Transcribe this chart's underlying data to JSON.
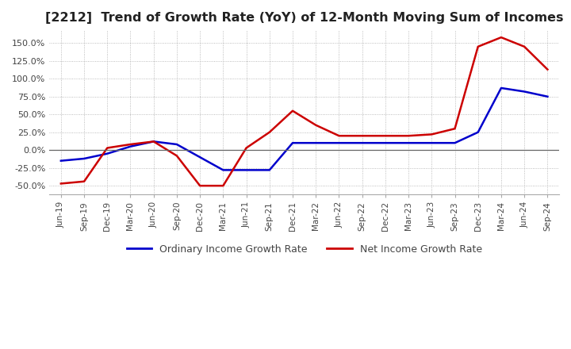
{
  "title": "[2212]  Trend of Growth Rate (YoY) of 12-Month Moving Sum of Incomes",
  "title_fontsize": 11.5,
  "ylim": [
    -62,
    168
  ],
  "yticks": [
    -50,
    -25,
    0,
    25,
    50,
    75,
    100,
    125,
    150
  ],
  "background_color": "#ffffff",
  "grid_color": "#aaaaaa",
  "legend_labels": [
    "Ordinary Income Growth Rate",
    "Net Income Growth Rate"
  ],
  "legend_colors": [
    "#0000cc",
    "#cc0000"
  ],
  "x_labels": [
    "Jun-19",
    "Sep-19",
    "Dec-19",
    "Mar-20",
    "Jun-20",
    "Sep-20",
    "Dec-20",
    "Mar-21",
    "Jun-21",
    "Sep-21",
    "Dec-21",
    "Mar-22",
    "Jun-22",
    "Sep-22",
    "Dec-22",
    "Mar-23",
    "Jun-23",
    "Sep-23",
    "Dec-23",
    "Mar-24",
    "Jun-24",
    "Sep-24"
  ],
  "ordinary_income_growth": [
    -15.0,
    -12.0,
    -5.0,
    5.0,
    12.0,
    8.0,
    -10.0,
    -28.0,
    -28.0,
    -28.0,
    10.0,
    10.0,
    10.0,
    10.0,
    10.0,
    10.0,
    10.0,
    10.0,
    25.0,
    87.0,
    82.0,
    75.0
  ],
  "net_income_growth": [
    -47.0,
    -44.0,
    3.0,
    8.0,
    12.0,
    -8.0,
    -50.0,
    -50.0,
    3.0,
    25.0,
    55.0,
    35.0,
    20.0,
    20.0,
    20.0,
    20.0,
    22.0,
    30.0,
    145.0,
    158.0,
    145.0,
    113.0
  ]
}
